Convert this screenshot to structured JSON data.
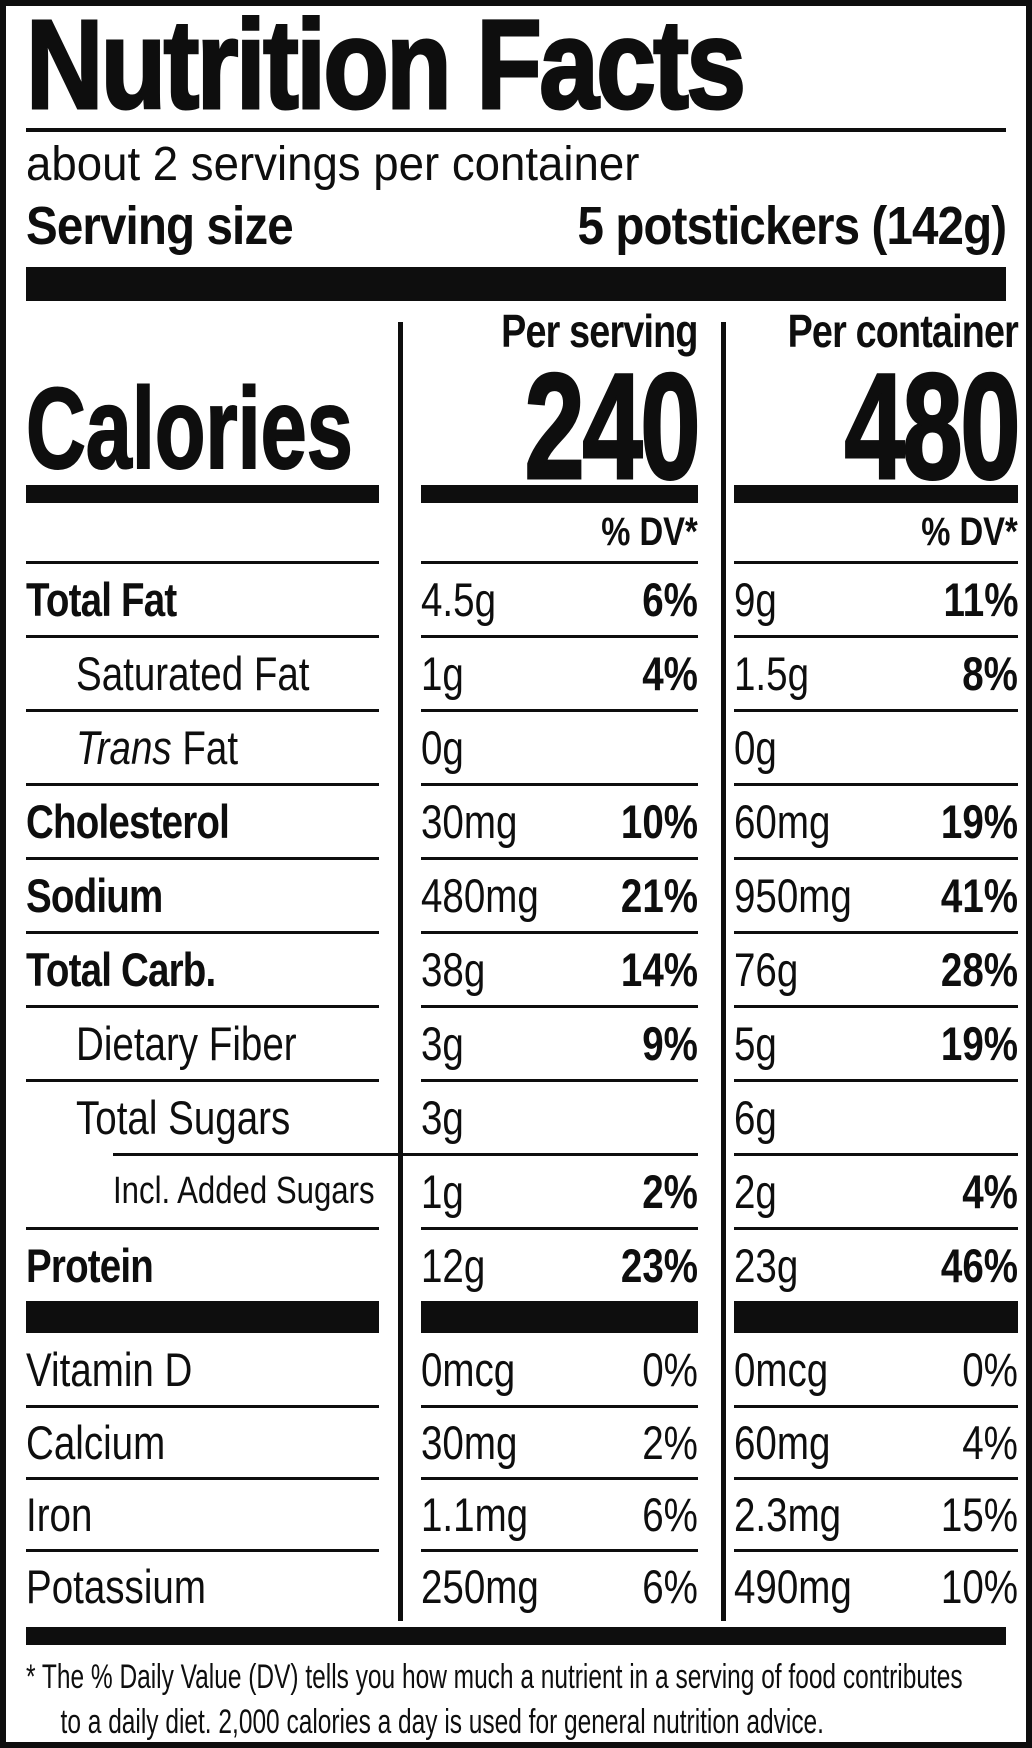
{
  "colors": {
    "ink": "#0e0e0e",
    "paper": "#ffffff"
  },
  "header": {
    "title": "Nutrition Facts",
    "servings_per_container": "about 2 servings per container",
    "serving_size_label": "Serving size",
    "serving_size_value": "5 potstickers (142g)"
  },
  "calories": {
    "label": "Calories",
    "per_serving": {
      "header": "Per serving",
      "value": "240"
    },
    "per_container": {
      "header": "Per container",
      "value": "480"
    },
    "dv_header_serving": "% DV*",
    "dv_header_container": "% DV*"
  },
  "nutrients": [
    {
      "label": "Total Fat",
      "serving_amount": "4.5g",
      "serving_dv": "6%",
      "container_amount": "9g",
      "container_dv": "11%"
    },
    {
      "label": "Saturated Fat",
      "serving_amount": "1g",
      "serving_dv": "4%",
      "container_amount": "1.5g",
      "container_dv": "8%"
    },
    {
      "label_italic": "Trans",
      "label": " Fat",
      "serving_amount": "0g",
      "serving_dv": "",
      "container_amount": "0g",
      "container_dv": ""
    },
    {
      "label": "Cholesterol",
      "serving_amount": "30mg",
      "serving_dv": "10%",
      "container_amount": "60mg",
      "container_dv": "19%"
    },
    {
      "label": "Sodium",
      "serving_amount": "480mg",
      "serving_dv": "21%",
      "container_amount": "950mg",
      "container_dv": "41%"
    },
    {
      "label": "Total Carb.",
      "serving_amount": "38g",
      "serving_dv": "14%",
      "container_amount": "76g",
      "container_dv": "28%"
    },
    {
      "label": "Dietary Fiber",
      "serving_amount": "3g",
      "serving_dv": "9%",
      "container_amount": "5g",
      "container_dv": "19%"
    },
    {
      "label": "Total Sugars",
      "serving_amount": "3g",
      "serving_dv": "",
      "container_amount": "6g",
      "container_dv": ""
    },
    {
      "label": "Incl. Added Sugars",
      "serving_amount": "1g",
      "serving_dv": "2%",
      "container_amount": "2g",
      "container_dv": "4%"
    },
    {
      "label": "Protein",
      "serving_amount": "12g",
      "serving_dv": "23%",
      "container_amount": "23g",
      "container_dv": "46%"
    }
  ],
  "vitamins": [
    {
      "label": "Vitamin D",
      "serving_amount": "0mcg",
      "serving_dv": "0%",
      "container_amount": "0mcg",
      "container_dv": "0%"
    },
    {
      "label": "Calcium",
      "serving_amount": "30mg",
      "serving_dv": "2%",
      "container_amount": "60mg",
      "container_dv": "4%"
    },
    {
      "label": "Iron",
      "serving_amount": "1.1mg",
      "serving_dv": "6%",
      "container_amount": "2.3mg",
      "container_dv": "15%"
    },
    {
      "label": "Potassium",
      "serving_amount": "250mg",
      "serving_dv": "6%",
      "container_amount": "490mg",
      "container_dv": "10%"
    }
  ],
  "footnote": {
    "line1": "* The % Daily Value (DV) tells you how much a nutrient in a serving of food contributes",
    "line2": "to a daily diet. 2,000 calories a day is used for general nutrition advice."
  }
}
